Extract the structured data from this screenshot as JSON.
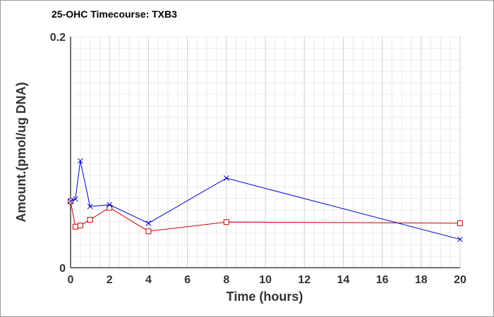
{
  "chart_data": {
    "type": "line",
    "title": "25-OHC Timecourse: TXB3",
    "xlabel": "Time (hours)",
    "ylabel": "Amount.(pmol/ug DNA)",
    "xlim": [
      0,
      20
    ],
    "ylim": [
      0,
      0.2
    ],
    "xticks": [
      0,
      2,
      4,
      6,
      8,
      10,
      12,
      14,
      16,
      18,
      20
    ],
    "yticks": [
      0,
      0.2
    ],
    "ytick_labels": [
      "0",
      "0.2"
    ],
    "grid": true,
    "series": [
      {
        "color": "#cc0000",
        "marker": "square",
        "x": [
          0,
          0.25,
          0.5,
          1,
          2,
          4,
          8,
          20
        ],
        "y": [
          0.0575,
          0.0355,
          0.0365,
          0.0415,
          0.052,
          0.0315,
          0.0395,
          0.0385
        ]
      },
      {
        "color": "#0000cc",
        "marker": "x",
        "x": [
          0,
          0.25,
          0.5,
          1,
          2,
          4,
          8,
          20
        ],
        "y": [
          0.0575,
          0.0595,
          0.0925,
          0.053,
          0.0545,
          0.0385,
          0.0775,
          0.0245
        ]
      }
    ]
  }
}
